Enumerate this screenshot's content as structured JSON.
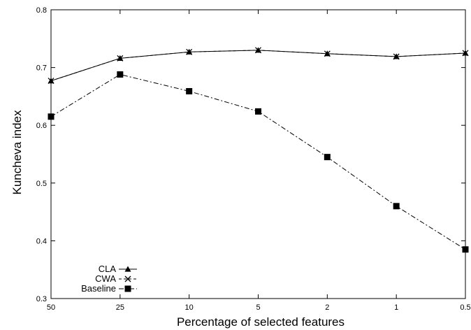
{
  "chart_data": {
    "type": "line",
    "xlabel": "Percentage of selected features",
    "ylabel": "Kuncheva index",
    "categories": [
      "50",
      "25",
      "10",
      "5",
      "2",
      "1",
      "0.5"
    ],
    "ylim": [
      0.3,
      0.8
    ],
    "yticks": [
      "0.3",
      "0.4",
      "0.5",
      "0.6",
      "0.7",
      "0.8"
    ],
    "grid": false,
    "legend_position": "bottom-left",
    "series": [
      {
        "name": "CLA",
        "marker": "triangle",
        "dash": "solid",
        "values": [
          0.677,
          0.716,
          0.727,
          0.73,
          0.724,
          0.719,
          0.725
        ]
      },
      {
        "name": "CWA",
        "marker": "x",
        "dash": "dashed",
        "values": [
          0.677,
          0.716,
          0.727,
          0.73,
          0.724,
          0.719,
          0.725
        ]
      },
      {
        "name": "Baseline",
        "marker": "square",
        "dash": "dashdot",
        "values": [
          0.615,
          0.688,
          0.659,
          0.624,
          0.545,
          0.46,
          0.385
        ]
      }
    ]
  }
}
